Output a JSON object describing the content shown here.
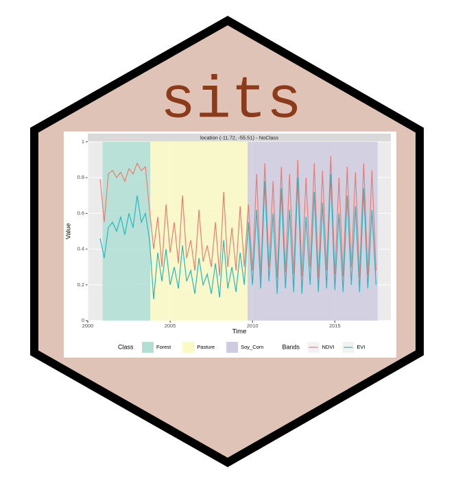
{
  "logo": {
    "title": "sits"
  },
  "chart_data": {
    "type": "line",
    "title": "location (-11.72, -55.51) - NoClass",
    "x_label": "Time",
    "y_label": "Value",
    "xlim": [
      2000,
      2018.4
    ],
    "xticks": [
      2000,
      2005,
      2010,
      2015
    ],
    "ylim": [
      0,
      1
    ],
    "yticks": [
      0,
      0.2,
      0.4,
      0.6,
      0.8,
      1
    ],
    "grid": true,
    "class_legend_title": "Class",
    "classes": [
      {
        "name": "Forest",
        "color": "#b2dfd4",
        "start": 2000.9,
        "end": 2003.8
      },
      {
        "name": "Pasture",
        "color": "#fafac4",
        "start": 2003.8,
        "end": 2009.7
      },
      {
        "name": "Soy_Corn",
        "color": "#cfcbe0",
        "start": 2009.7,
        "end": 2017.6
      }
    ],
    "series_legend_title": "Bands",
    "x": [
      2000.75,
      2001,
      2001.25,
      2001.5,
      2001.75,
      2002,
      2002.25,
      2002.5,
      2002.75,
      2003,
      2003.25,
      2003.5,
      2003.75,
      2004,
      2004.25,
      2004.5,
      2004.75,
      2005,
      2005.25,
      2005.5,
      2005.75,
      2006,
      2006.25,
      2006.5,
      2006.75,
      2007,
      2007.25,
      2007.5,
      2007.75,
      2008,
      2008.25,
      2008.5,
      2008.75,
      2009,
      2009.25,
      2009.5,
      2009.75,
      2010,
      2010.25,
      2010.5,
      2010.75,
      2011,
      2011.25,
      2011.5,
      2011.75,
      2012,
      2012.25,
      2012.5,
      2012.75,
      2013,
      2013.25,
      2013.5,
      2013.75,
      2014,
      2014.25,
      2014.5,
      2014.75,
      2015,
      2015.25,
      2015.5,
      2015.75,
      2016,
      2016.25,
      2016.5,
      2016.75,
      2017,
      2017.25,
      2017.5
    ],
    "series": [
      {
        "name": "NDVI",
        "color": "#f07a6e",
        "values": [
          0.79,
          0.55,
          0.82,
          0.84,
          0.8,
          0.83,
          0.78,
          0.85,
          0.82,
          0.88,
          0.84,
          0.86,
          0.62,
          0.4,
          0.58,
          0.3,
          0.65,
          0.38,
          0.55,
          0.32,
          0.7,
          0.35,
          0.45,
          0.28,
          0.62,
          0.33,
          0.42,
          0.3,
          0.55,
          0.25,
          0.72,
          0.3,
          0.52,
          0.28,
          0.64,
          0.3,
          0.65,
          0.28,
          0.82,
          0.25,
          0.88,
          0.3,
          0.78,
          0.24,
          0.86,
          0.27,
          0.82,
          0.26,
          0.9,
          0.25,
          0.8,
          0.3,
          0.88,
          0.24,
          0.84,
          0.28,
          0.92,
          0.26,
          0.8,
          0.25,
          0.86,
          0.3,
          0.83,
          0.24,
          0.88,
          0.26,
          0.84,
          0.28
        ]
      },
      {
        "name": "EVI",
        "color": "#22b8c0",
        "values": [
          0.46,
          0.35,
          0.52,
          0.55,
          0.5,
          0.58,
          0.48,
          0.6,
          0.52,
          0.7,
          0.55,
          0.6,
          0.45,
          0.12,
          0.38,
          0.22,
          0.4,
          0.2,
          0.3,
          0.18,
          0.42,
          0.22,
          0.28,
          0.15,
          0.35,
          0.2,
          0.26,
          0.15,
          0.32,
          0.13,
          0.45,
          0.18,
          0.3,
          0.16,
          0.38,
          0.2,
          0.55,
          0.2,
          0.62,
          0.18,
          0.78,
          0.22,
          0.6,
          0.15,
          0.74,
          0.18,
          0.62,
          0.16,
          0.8,
          0.15,
          0.58,
          0.2,
          0.72,
          0.16,
          0.66,
          0.18,
          0.82,
          0.17,
          0.6,
          0.16,
          0.7,
          0.2,
          0.64,
          0.16,
          0.74,
          0.18,
          0.62,
          0.2
        ]
      }
    ]
  }
}
